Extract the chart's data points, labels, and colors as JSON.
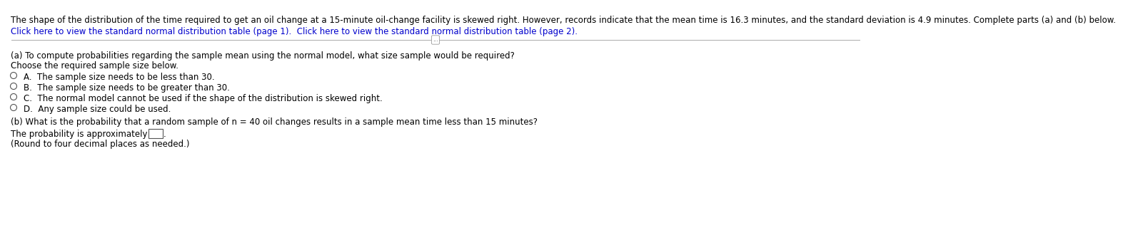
{
  "line1": "The shape of the distribution of the time required to get an oil change at a 15-minute oil-change facility is skewed right. However, records indicate that the mean time is 16.3 minutes, and the standard deviation is 4.9 minutes. Complete parts (a) and (b) below.",
  "link_text": "Click here to view the standard normal distribution table (page 1).  Click here to view the standard normal distribution table (page 2).",
  "part_a_question": "(a) To compute probabilities regarding the sample mean using the normal model, what size sample would be required?",
  "part_a_choose": "Choose the required sample size below.",
  "option_a": "A.  The sample size needs to be less than 30.",
  "option_b": "B.  The sample size needs to be greater than 30.",
  "option_c": "C.  The normal model cannot be used if the shape of the distribution is skewed right.",
  "option_d": "D.  Any sample size could be used.",
  "part_b_question": "(b) What is the probability that a random sample of n = 40 oil changes results in a sample mean time less than 15 minutes?",
  "prob_label": "The probability is approximately",
  "round_note": "(Round to four decimal places as needed.)",
  "bg_color": "#ffffff",
  "text_color": "#000000",
  "link_color": "#0000cc",
  "font_size": 8.5,
  "separator_color": "#aaaaaa",
  "circle_edge_color": "#555555",
  "box_edge_color": "#555555",
  "ellipsis_color": "#555555"
}
